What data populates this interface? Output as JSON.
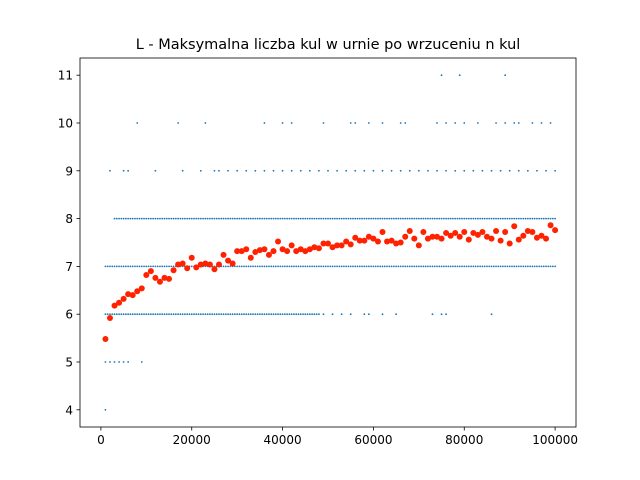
{
  "chart_data": {
    "type": "scatter",
    "title": "L - Maksymalna liczba kul w urnie po wrzuceniu n kul",
    "xlabel": "",
    "ylabel": "",
    "xlim": [
      -4600,
      104600
    ],
    "ylim": [
      3.64,
      11.36
    ],
    "xticks": [
      0,
      20000,
      40000,
      60000,
      80000,
      100000
    ],
    "xtick_labels": [
      "0",
      "20000",
      "40000",
      "60000",
      "80000",
      "100000"
    ],
    "yticks": [
      4,
      5,
      6,
      7,
      8,
      9,
      10,
      11
    ],
    "ytick_labels": [
      "4",
      "5",
      "6",
      "7",
      "8",
      "9",
      "10",
      "11"
    ],
    "grid": false,
    "legend": "none",
    "colors": {
      "samples": "#1f77b4",
      "mean": "#ff2200"
    },
    "series": [
      {
        "role": "samples",
        "points": [
          [
            1000,
            4
          ],
          [
            1000,
            5
          ],
          [
            2000,
            5
          ],
          [
            3000,
            5
          ],
          [
            4000,
            5
          ],
          [
            5000,
            5
          ],
          [
            6000,
            5
          ],
          [
            9000,
            5
          ],
          [
            2000,
            9
          ],
          [
            5000,
            9
          ],
          [
            6000,
            9
          ],
          [
            12000,
            9
          ],
          [
            18000,
            9
          ],
          [
            22000,
            9
          ],
          [
            25000,
            9
          ],
          [
            26000,
            9
          ],
          [
            28000,
            9
          ],
          [
            30000,
            9
          ],
          [
            32000,
            9
          ],
          [
            34000,
            9
          ],
          [
            36000,
            9
          ],
          [
            38000,
            9
          ],
          [
            40000,
            9
          ],
          [
            42000,
            9
          ],
          [
            44000,
            9
          ],
          [
            46000,
            9
          ],
          [
            48000,
            9
          ],
          [
            50000,
            9
          ],
          [
            52000,
            9
          ],
          [
            54000,
            9
          ],
          [
            56000,
            9
          ],
          [
            58000,
            9
          ],
          [
            60000,
            9
          ],
          [
            62000,
            9
          ],
          [
            64000,
            9
          ],
          [
            66000,
            9
          ],
          [
            68000,
            9
          ],
          [
            70000,
            9
          ],
          [
            72000,
            9
          ],
          [
            74000,
            9
          ],
          [
            76000,
            9
          ],
          [
            78000,
            9
          ],
          [
            80000,
            9
          ],
          [
            82000,
            9
          ],
          [
            84000,
            9
          ],
          [
            86000,
            9
          ],
          [
            88000,
            9
          ],
          [
            90000,
            9
          ],
          [
            92000,
            9
          ],
          [
            94000,
            9
          ],
          [
            96000,
            9
          ],
          [
            98000,
            9
          ],
          [
            100000,
            9
          ],
          [
            8000,
            10
          ],
          [
            17000,
            10
          ],
          [
            23000,
            10
          ],
          [
            36000,
            10
          ],
          [
            40000,
            10
          ],
          [
            42000,
            10
          ],
          [
            49000,
            10
          ],
          [
            55000,
            10
          ],
          [
            56000,
            10
          ],
          [
            59000,
            10
          ],
          [
            62000,
            10
          ],
          [
            66000,
            10
          ],
          [
            67000,
            10
          ],
          [
            74000,
            10
          ],
          [
            76000,
            10
          ],
          [
            78000,
            10
          ],
          [
            80000,
            10
          ],
          [
            83000,
            10
          ],
          [
            87000,
            10
          ],
          [
            89000,
            10
          ],
          [
            91000,
            10
          ],
          [
            92000,
            10
          ],
          [
            95000,
            10
          ],
          [
            97000,
            10
          ],
          [
            99000,
            10
          ],
          [
            75000,
            11
          ],
          [
            79000,
            11
          ],
          [
            89000,
            11
          ]
        ]
      },
      {
        "role": "mean",
        "x": [
          1000,
          2000,
          3000,
          4000,
          5000,
          6000,
          7000,
          8000,
          9000,
          10000,
          11000,
          12000,
          13000,
          14000,
          15000,
          16000,
          17000,
          18000,
          19000,
          20000,
          21000,
          22000,
          23000,
          24000,
          25000,
          26000,
          27000,
          28000,
          29000,
          30000,
          31000,
          32000,
          33000,
          34000,
          35000,
          36000,
          37000,
          38000,
          39000,
          40000,
          41000,
          42000,
          43000,
          44000,
          45000,
          46000,
          47000,
          48000,
          49000,
          50000,
          51000,
          52000,
          53000,
          54000,
          55000,
          56000,
          57000,
          58000,
          59000,
          60000,
          61000,
          62000,
          63000,
          64000,
          65000,
          66000,
          67000,
          68000,
          69000,
          70000,
          71000,
          72000,
          73000,
          74000,
          75000,
          76000,
          77000,
          78000,
          79000,
          80000,
          81000,
          82000,
          83000,
          84000,
          85000,
          86000,
          87000,
          88000,
          89000,
          90000,
          91000,
          92000,
          93000,
          94000,
          95000,
          96000,
          97000,
          98000,
          99000,
          100000
        ],
        "y": [
          5.48,
          5.92,
          6.18,
          6.24,
          6.32,
          6.42,
          6.4,
          6.48,
          6.54,
          6.82,
          6.9,
          6.76,
          6.68,
          6.76,
          6.74,
          6.92,
          7.04,
          7.06,
          6.96,
          7.18,
          6.98,
          7.04,
          7.06,
          7.04,
          6.94,
          7.04,
          7.24,
          7.12,
          7.06,
          7.32,
          7.32,
          7.36,
          7.18,
          7.3,
          7.34,
          7.36,
          7.24,
          7.32,
          7.52,
          7.36,
          7.32,
          7.44,
          7.32,
          7.36,
          7.32,
          7.36,
          7.4,
          7.38,
          7.48,
          7.48,
          7.4,
          7.44,
          7.44,
          7.52,
          7.46,
          7.6,
          7.54,
          7.54,
          7.62,
          7.58,
          7.52,
          7.72,
          7.52,
          7.54,
          7.48,
          7.5,
          7.62,
          7.74,
          7.58,
          7.44,
          7.72,
          7.58,
          7.62,
          7.62,
          7.58,
          7.7,
          7.64,
          7.7,
          7.62,
          7.72,
          7.56,
          7.7,
          7.66,
          7.72,
          7.62,
          7.58,
          7.74,
          7.54,
          7.72,
          7.48,
          7.84,
          7.56,
          7.64,
          7.74,
          7.72,
          7.6,
          7.64,
          7.58,
          7.86,
          7.76
        ]
      }
    ]
  }
}
